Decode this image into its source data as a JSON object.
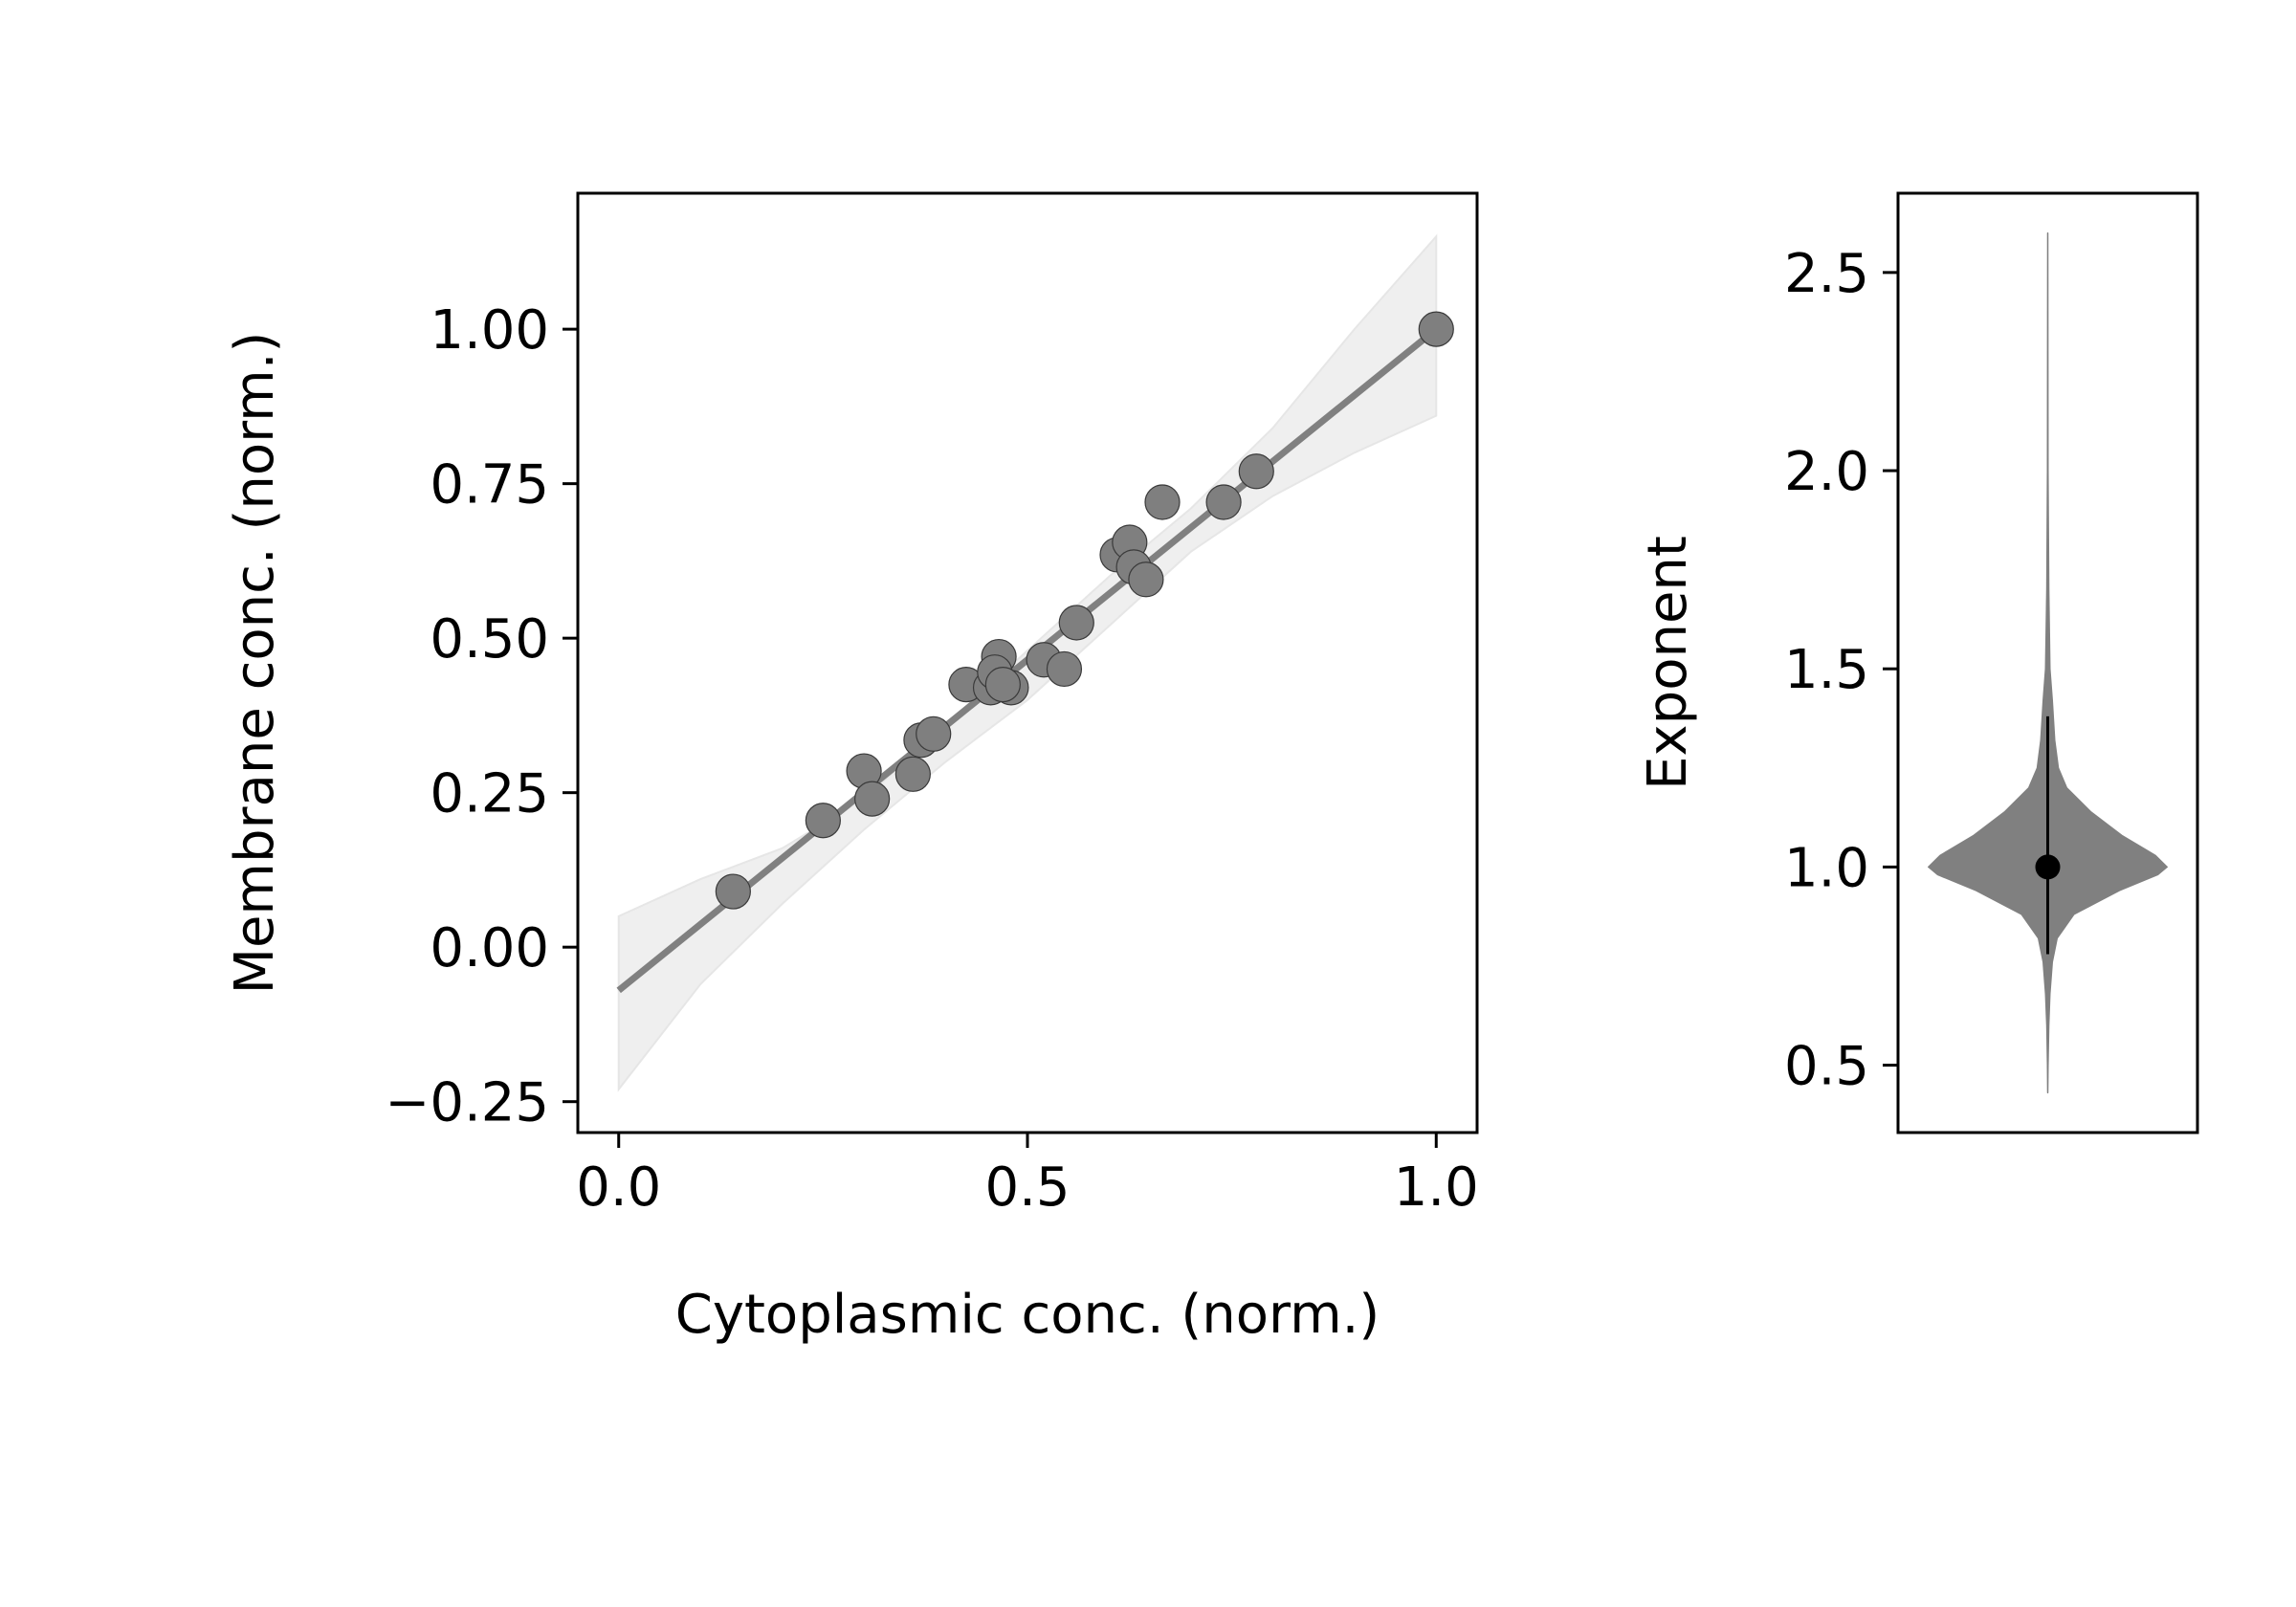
{
  "chart_data": [
    {
      "type": "scatter",
      "xlabel": "Cytoplasmic conc. (norm.)",
      "ylabel": "Membrane conc. (norm.)",
      "xlim": [
        -0.05,
        1.05
      ],
      "ylim": [
        -0.3,
        1.22
      ],
      "xticks": [
        0.0,
        0.5,
        1.0
      ],
      "xtick_labels": [
        "0.0",
        "0.5",
        "1.0"
      ],
      "yticks": [
        -0.25,
        0.0,
        0.25,
        0.5,
        0.75,
        1.0
      ],
      "ytick_labels": [
        "−0.25",
        "0.00",
        "0.25",
        "0.50",
        "0.75",
        "1.00"
      ],
      "grid": false,
      "points": [
        {
          "x": 0.14,
          "y": 0.09
        },
        {
          "x": 0.25,
          "y": 0.205
        },
        {
          "x": 0.3,
          "y": 0.285
        },
        {
          "x": 0.31,
          "y": 0.24
        },
        {
          "x": 0.36,
          "y": 0.28
        },
        {
          "x": 0.37,
          "y": 0.335
        },
        {
          "x": 0.385,
          "y": 0.345
        },
        {
          "x": 0.425,
          "y": 0.425
        },
        {
          "x": 0.455,
          "y": 0.42
        },
        {
          "x": 0.465,
          "y": 0.47
        },
        {
          "x": 0.46,
          "y": 0.445
        },
        {
          "x": 0.48,
          "y": 0.42
        },
        {
          "x": 0.47,
          "y": 0.425
        },
        {
          "x": 0.52,
          "y": 0.465
        },
        {
          "x": 0.545,
          "y": 0.45
        },
        {
          "x": 0.56,
          "y": 0.525
        },
        {
          "x": 0.61,
          "y": 0.635
        },
        {
          "x": 0.625,
          "y": 0.655
        },
        {
          "x": 0.63,
          "y": 0.615
        },
        {
          "x": 0.645,
          "y": 0.595
        },
        {
          "x": 0.665,
          "y": 0.72
        },
        {
          "x": 0.74,
          "y": 0.72
        },
        {
          "x": 0.78,
          "y": 0.77
        },
        {
          "x": 1.0,
          "y": 1.0
        }
      ],
      "fit_line": {
        "x": [
          0.0,
          1.0
        ],
        "y": [
          -0.07,
          1.0
        ]
      },
      "confidence_band": {
        "x": [
          0.0,
          0.1,
          0.2,
          0.3,
          0.4,
          0.5,
          0.6,
          0.7,
          0.8,
          0.9,
          1.0
        ],
        "lower": [
          -0.23,
          -0.06,
          0.07,
          0.19,
          0.3,
          0.4,
          0.52,
          0.64,
          0.73,
          0.8,
          0.86
        ],
        "upper": [
          0.05,
          0.11,
          0.16,
          0.24,
          0.36,
          0.48,
          0.6,
          0.71,
          0.84,
          1.0,
          1.15
        ]
      },
      "colors": {
        "points": "#7f7f7f",
        "line": "#808080",
        "band": "#efefef"
      }
    },
    {
      "type": "violin",
      "ylabel": "Exponent",
      "ylim": [
        0.33,
        2.7
      ],
      "yticks": [
        0.5,
        1.0,
        1.5,
        2.0,
        2.5
      ],
      "ytick_labels": [
        "0.5",
        "1.0",
        "1.5",
        "2.0",
        "2.5"
      ],
      "grid": false,
      "median": 1.0,
      "interval": [
        0.78,
        1.38
      ],
      "range": [
        0.43,
        2.6
      ],
      "density_profile": [
        {
          "y": 0.43,
          "w": 0.0
        },
        {
          "y": 0.6,
          "w": 0.01
        },
        {
          "y": 0.68,
          "w": 0.02
        },
        {
          "y": 0.76,
          "w": 0.04
        },
        {
          "y": 0.82,
          "w": 0.08
        },
        {
          "y": 0.88,
          "w": 0.22
        },
        {
          "y": 0.94,
          "w": 0.6
        },
        {
          "y": 0.98,
          "w": 0.92
        },
        {
          "y": 1.0,
          "w": 1.0
        },
        {
          "y": 1.03,
          "w": 0.9
        },
        {
          "y": 1.08,
          "w": 0.62
        },
        {
          "y": 1.14,
          "w": 0.36
        },
        {
          "y": 1.2,
          "w": 0.16
        },
        {
          "y": 1.25,
          "w": 0.09
        },
        {
          "y": 1.32,
          "w": 0.06
        },
        {
          "y": 1.42,
          "w": 0.04
        },
        {
          "y": 1.5,
          "w": 0.02
        },
        {
          "y": 1.7,
          "w": 0.01
        },
        {
          "y": 2.0,
          "w": 0.004
        },
        {
          "y": 2.6,
          "w": 0.0
        }
      ],
      "colors": {
        "body": "#808080",
        "interval": "#000000",
        "median": "#000000"
      }
    }
  ]
}
